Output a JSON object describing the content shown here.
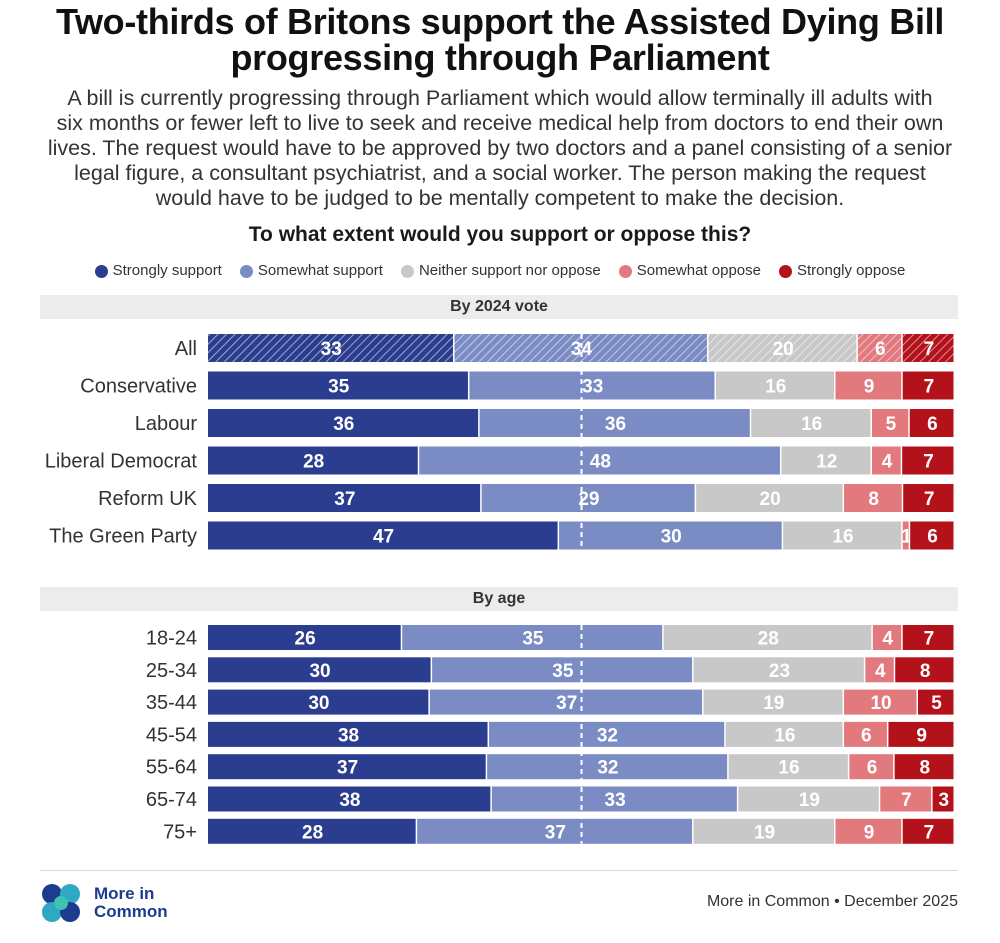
{
  "title_lines": [
    "Two-thirds of Britons support the Assisted Dying Bill",
    "progressing through Parliament"
  ],
  "subtitle_lines": [
    "A bill is currently progressing through Parliament which would allow terminally ill adults with",
    "six months or fewer left to live to seek and receive medical help from doctors to end their own",
    "lives. The request would have to be approved by two doctors and a panel consisting of a senior",
    "legal figure, a consultant psychiatrist, and a social worker. The person making the request",
    "would have to be judged to be mentally competent to make the decision."
  ],
  "question": "To what extent would you support or oppose this?",
  "legend": [
    {
      "label": "Strongly support",
      "color": "#2a3d8f"
    },
    {
      "label": "Somewhat support",
      "color": "#7b8bc4"
    },
    {
      "label": "Neither support nor oppose",
      "color": "#c8c8c8"
    },
    {
      "label": "Somewhat oppose",
      "color": "#e2797d"
    },
    {
      "label": "Strongly oppose",
      "color": "#b3121b"
    }
  ],
  "chart_data": {
    "type": "bar",
    "orientation": "horizontal-stacked-100",
    "series_names": [
      "Strongly support",
      "Somewhat support",
      "Neither support nor oppose",
      "Somewhat oppose",
      "Strongly oppose"
    ],
    "colors": [
      "#2a3d8f",
      "#7b8bc4",
      "#c8c8c8",
      "#e2797d",
      "#b3121b"
    ],
    "label_colors": [
      "#ffffff",
      "#ffffff",
      "#ffffff",
      "#ffffff",
      "#ffffff"
    ],
    "midline": 50,
    "sections": [
      {
        "header": "By 2024 vote",
        "rows": [
          {
            "label": "All",
            "values": [
              33,
              34,
              20,
              6,
              7
            ],
            "hatched": true
          },
          {
            "label": "Conservative",
            "values": [
              35,
              33,
              16,
              9,
              7
            ]
          },
          {
            "label": "Labour",
            "values": [
              36,
              36,
              16,
              5,
              6
            ]
          },
          {
            "label": "Liberal Democrat",
            "values": [
              28,
              48,
              12,
              4,
              7
            ]
          },
          {
            "label": "Reform UK",
            "values": [
              37,
              29,
              20,
              8,
              7
            ]
          },
          {
            "label": "The Green Party",
            "values": [
              47,
              30,
              16,
              1,
              6
            ]
          }
        ]
      },
      {
        "header": "By age",
        "rows": [
          {
            "label": "18-24",
            "values": [
              26,
              35,
              28,
              4,
              7
            ]
          },
          {
            "label": "25-34",
            "values": [
              30,
              35,
              23,
              4,
              8
            ]
          },
          {
            "label": "35-44",
            "values": [
              30,
              37,
              19,
              10,
              5
            ]
          },
          {
            "label": "45-54",
            "values": [
              38,
              32,
              16,
              6,
              9
            ]
          },
          {
            "label": "55-64",
            "values": [
              37,
              32,
              16,
              6,
              8
            ]
          },
          {
            "label": "65-74",
            "values": [
              38,
              33,
              19,
              7,
              3
            ]
          },
          {
            "label": "75+",
            "values": [
              28,
              37,
              19,
              9,
              7
            ]
          }
        ]
      }
    ]
  },
  "footer": {
    "logo_line1": "More in",
    "logo_line2": "Common",
    "source": "More in Common • December 2025"
  }
}
